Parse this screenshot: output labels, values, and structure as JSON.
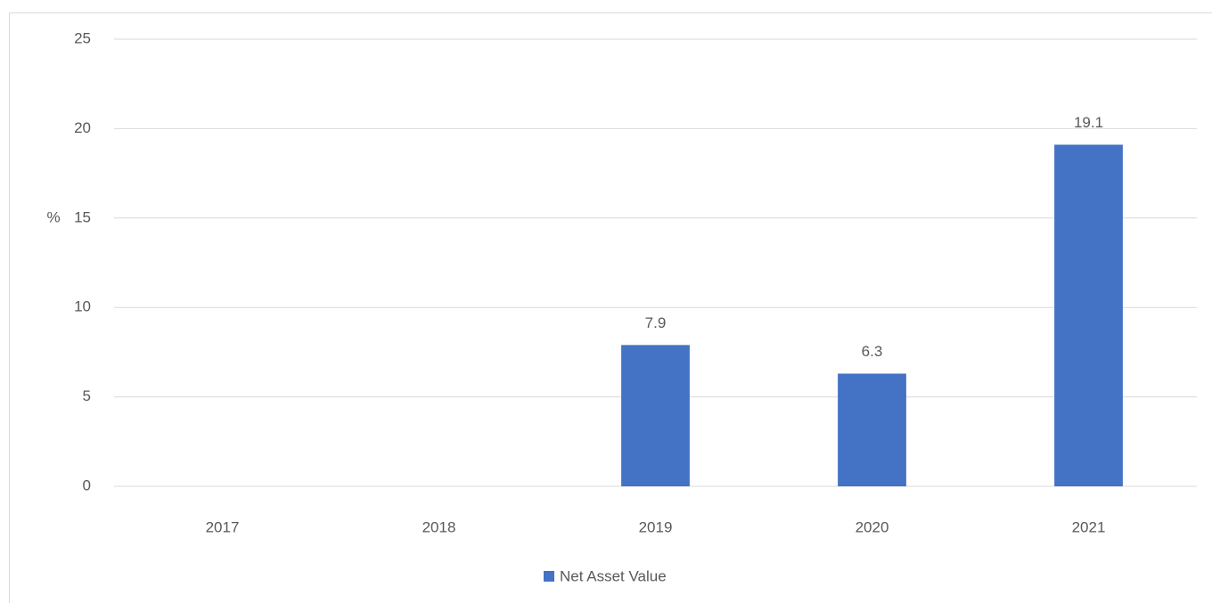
{
  "chart_data": {
    "type": "bar",
    "y_label": "%",
    "categories": [
      "2017",
      "2018",
      "2019",
      "2020",
      "2021"
    ],
    "series": [
      {
        "name": "Net Asset Value",
        "color": "#4472c4",
        "values": [
          null,
          null,
          7.9,
          6.3,
          19.1
        ]
      }
    ],
    "ylim": [
      0,
      25
    ],
    "yticks": [
      0,
      5,
      10,
      15,
      20,
      25
    ],
    "grid": true,
    "legend": "bottom",
    "data_labels": true
  }
}
